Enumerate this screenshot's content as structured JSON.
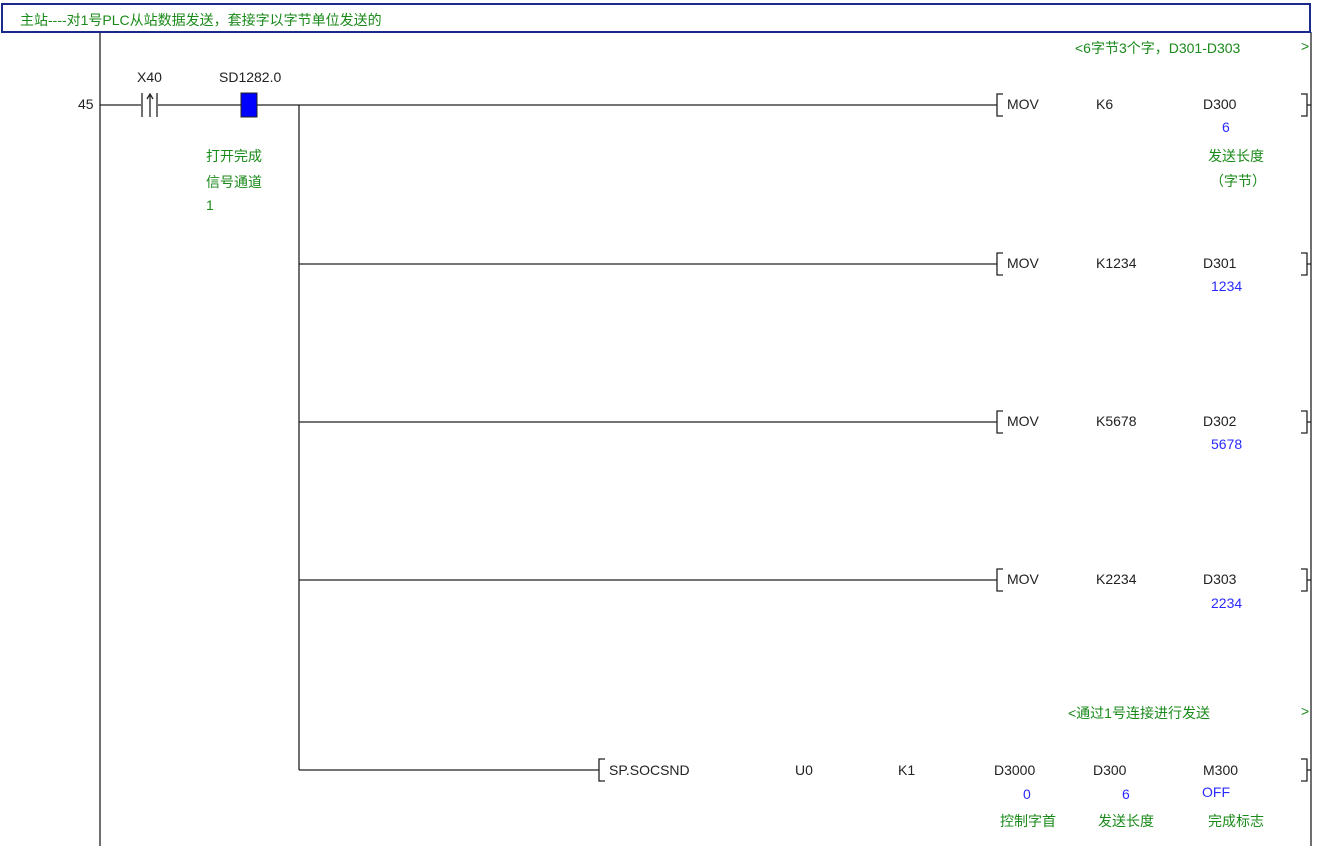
{
  "rung_comment": "主站----对1号PLC从站数据发送，套接字以字节单位发送的",
  "step_number": "45",
  "contacts": [
    {
      "device": "X40",
      "type": "rising-edge contact"
    },
    {
      "device": "SD1282.0",
      "type": "contact-on",
      "comment_lines": [
        "打开完成",
        "信号通道",
        "1"
      ]
    }
  ],
  "statement_1": {
    "text": "<6字节3个字，D301-D303",
    "end": ">"
  },
  "statement_2": {
    "text": "<通过1号连接进行发送",
    "end": ">"
  },
  "instructions": [
    {
      "op": "MOV",
      "src": "K6",
      "dst": "D300",
      "value": "6",
      "comment_lines": [
        "发送长度",
        "（字节）"
      ]
    },
    {
      "op": "MOV",
      "src": "K1234",
      "dst": "D301",
      "value": "1234"
    },
    {
      "op": "MOV",
      "src": "K5678",
      "dst": "D302",
      "value": "5678"
    },
    {
      "op": "MOV",
      "src": "K2234",
      "dst": "D303",
      "value": "2234"
    }
  ],
  "socsnd": {
    "op": "SP.SOCSND",
    "args": [
      "U0",
      "K1",
      "D3000",
      "D300",
      "M300"
    ],
    "values": [
      "0",
      "6",
      "OFF"
    ],
    "comments": [
      "控制字首",
      "发送长度",
      "完成标志"
    ]
  },
  "colors": {
    "comment": "#1a8a1a",
    "value": "#2a2aff",
    "header_border": "#1a2a8a",
    "contact_on": "#0000ff"
  }
}
